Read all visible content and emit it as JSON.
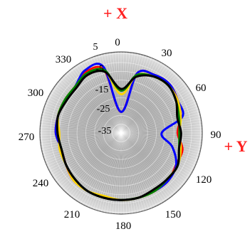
{
  "chart_data": {
    "type": "polar-line",
    "axis_names": {
      "x": "+ X",
      "y": "+ Y"
    },
    "angle_ticks": [
      "0",
      "30",
      "60",
      "90",
      "120",
      "150",
      "180",
      "210",
      "240",
      "270",
      "300",
      "330"
    ],
    "radial_ticks": [
      "5",
      "-5",
      "-15",
      "-25",
      "-35"
    ],
    "radial_range": [
      -40,
      6
    ],
    "angle_step_deg": 15,
    "angles": [
      0,
      15,
      30,
      45,
      60,
      75,
      90,
      105,
      120,
      135,
      150,
      165,
      180,
      195,
      210,
      225,
      240,
      255,
      270,
      285,
      300,
      315,
      330,
      345
    ],
    "series": [
      {
        "color": "#ff0000",
        "values": [
          -28,
          -5,
          -2,
          -1,
          -3,
          -5,
          -8,
          -4,
          -4,
          -2,
          -2,
          -2,
          -2,
          -2,
          -2,
          -2,
          -4,
          -5,
          -3,
          -3,
          -3,
          -3,
          0,
          -3
        ]
      },
      {
        "color": "#0000ff",
        "values": [
          -28,
          -5,
          -2,
          -1,
          -3,
          -4,
          -17,
          -10,
          -4,
          -2,
          -2,
          -2,
          -2,
          -2,
          -2,
          -3,
          -4,
          -5,
          -3,
          -3,
          -3,
          -3,
          1,
          -1
        ]
      },
      {
        "color": "#ffd400",
        "values": [
          -18,
          -6,
          -3,
          -2,
          -3,
          -5,
          -7,
          -5,
          -3,
          -3,
          -2,
          -2,
          -2,
          -3,
          -2,
          -2,
          -4,
          -4,
          -5,
          -3,
          -3,
          -3,
          -1,
          -3
        ]
      },
      {
        "color": "#008000",
        "values": [
          -16,
          -6,
          -3,
          -2,
          -4,
          -6,
          -7,
          -6,
          -3,
          -3,
          -2,
          -2,
          -2,
          -2,
          -2,
          -3,
          -4,
          -5,
          -4,
          -3,
          -3,
          -3,
          -1,
          -3
        ]
      },
      {
        "color": "#000000",
        "values": [
          -15,
          -7,
          -3,
          -2,
          -4,
          -7,
          -6,
          -6,
          -3,
          -3,
          -3,
          -2,
          -2,
          -2,
          -2,
          -3,
          -4,
          -5,
          -4,
          -3,
          -4,
          -4,
          -2,
          -4
        ]
      }
    ],
    "grid": true
  }
}
